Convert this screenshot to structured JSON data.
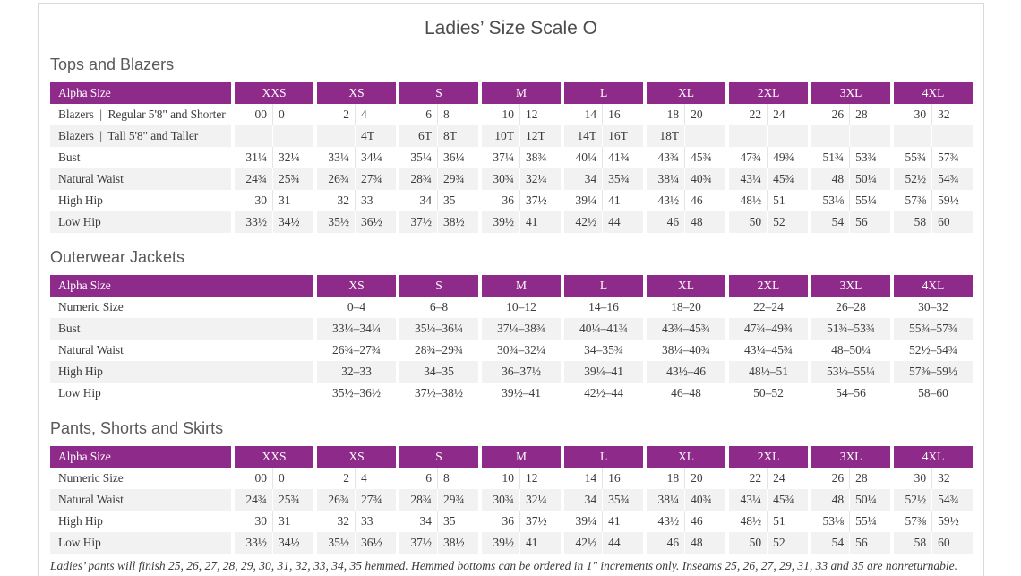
{
  "page": {
    "title": "Ladies’ Size Scale O",
    "footnote": "Ladies’ pants will finish 25, 26, 27, 28, 29, 30, 31, 32, 33, 34, 35 hemmed. Hemmed bottoms can be ordered in 1\" increments only. Inseams 25, 26, 27, 29, 31, 33 and 35 are nonreturnable."
  },
  "colors": {
    "header_purple": "#8e2a8a",
    "row_stripe": "#f2f2f2",
    "text_dark": "#3b3b3b",
    "heading_gray": "#595959",
    "frame_border": "#ddd8d8"
  },
  "tables": [
    {
      "section_title": "Tops and Blazers",
      "header_label": "Alpha Size",
      "split_columns": true,
      "size_groups": [
        "XXS",
        "XS",
        "S",
        "M",
        "L",
        "XL",
        "2XL",
        "3XL",
        "4XL"
      ],
      "rows": [
        {
          "label": "Blazers  |  Regular 5'8\" and Shorter",
          "values": [
            "00",
            "0",
            "2",
            "4",
            "6",
            "8",
            "10",
            "12",
            "14",
            "16",
            "18",
            "20",
            "22",
            "24",
            "26",
            "28",
            "30",
            "32"
          ]
        },
        {
          "label": "Blazers  |  Tall 5'8\" and Taller",
          "values": [
            "",
            "",
            "",
            "4T",
            "6T",
            "8T",
            "10T",
            "12T",
            "14T",
            "16T",
            "18T",
            "",
            "",
            "",
            "",
            "",
            "",
            ""
          ]
        },
        {
          "label": "Bust",
          "values": [
            "31¼",
            "32¼",
            "33¼",
            "34¼",
            "35¼",
            "36¼",
            "37¼",
            "38¾",
            "40¼",
            "41¾",
            "43¾",
            "45¾",
            "47¾",
            "49¾",
            "51¾",
            "53¾",
            "55¾",
            "57¾"
          ]
        },
        {
          "label": "Natural Waist",
          "values": [
            "24¾",
            "25¾",
            "26¾",
            "27¾",
            "28¾",
            "29¾",
            "30¾",
            "32¼",
            "34",
            "35¾",
            "38¼",
            "40¾",
            "43¼",
            "45¾",
            "48",
            "50¼",
            "52½",
            "54¾"
          ]
        },
        {
          "label": "High Hip",
          "values": [
            "30",
            "31",
            "32",
            "33",
            "34",
            "35",
            "36",
            "37½",
            "39¼",
            "41",
            "43½",
            "46",
            "48½",
            "51",
            "53⅛",
            "55¼",
            "57⅜",
            "59½"
          ]
        },
        {
          "label": "Low Hip",
          "values": [
            "33½",
            "34½",
            "35½",
            "36½",
            "37½",
            "38½",
            "39½",
            "41",
            "42½",
            "44",
            "46",
            "48",
            "50",
            "52",
            "54",
            "56",
            "58",
            "60"
          ]
        }
      ]
    },
    {
      "section_title": "Outerwear Jackets",
      "header_label": "Alpha Size",
      "split_columns": false,
      "size_groups": [
        "XS",
        "S",
        "M",
        "L",
        "XL",
        "2XL",
        "3XL",
        "4XL"
      ],
      "rows": [
        {
          "label": "Numeric Size",
          "values": [
            "0–4",
            "6–8",
            "10–12",
            "14–16",
            "18–20",
            "22–24",
            "26–28",
            "30–32"
          ]
        },
        {
          "label": "Bust",
          "values": [
            "33¼–34¼",
            "35¼–36¼",
            "37¼–38¾",
            "40¼–41¾",
            "43¾–45¾",
            "47¾–49¾",
            "51¾–53¾",
            "55¾–57¾"
          ]
        },
        {
          "label": "Natural Waist",
          "values": [
            "26¾–27¾",
            "28¾–29¾",
            "30¾–32¼",
            "34–35¾",
            "38¼–40¾",
            "43¼–45¾",
            "48–50¼",
            "52½–54¾"
          ]
        },
        {
          "label": "High Hip",
          "values": [
            "32–33",
            "34–35",
            "36–37½",
            "39¼–41",
            "43½–46",
            "48½–51",
            "53⅛–55¼",
            "57⅜–59½"
          ]
        },
        {
          "label": "Low Hip",
          "values": [
            "35½–36½",
            "37½–38½",
            "39½–41",
            "42½–44",
            "46–48",
            "50–52",
            "54–56",
            "58–60"
          ]
        }
      ]
    },
    {
      "section_title": "Pants, Shorts and Skirts",
      "header_label": "Alpha Size",
      "split_columns": true,
      "size_groups": [
        "XXS",
        "XS",
        "S",
        "M",
        "L",
        "XL",
        "2XL",
        "3XL",
        "4XL"
      ],
      "rows": [
        {
          "label": "Numeric Size",
          "values": [
            "00",
            "0",
            "2",
            "4",
            "6",
            "8",
            "10",
            "12",
            "14",
            "16",
            "18",
            "20",
            "22",
            "24",
            "26",
            "28",
            "30",
            "32"
          ]
        },
        {
          "label": "Natural Waist",
          "values": [
            "24¾",
            "25¾",
            "26¾",
            "27¾",
            "28¾",
            "29¾",
            "30¾",
            "32¼",
            "34",
            "35¾",
            "38¼",
            "40¾",
            "43¼",
            "45¾",
            "48",
            "50¼",
            "52½",
            "54¾"
          ]
        },
        {
          "label": "High Hip",
          "values": [
            "30",
            "31",
            "32",
            "33",
            "34",
            "35",
            "36",
            "37½",
            "39¼",
            "41",
            "43½",
            "46",
            "48½",
            "51",
            "53⅛",
            "55¼",
            "57⅜",
            "59½"
          ]
        },
        {
          "label": "Low Hip",
          "values": [
            "33½",
            "34½",
            "35½",
            "36½",
            "37½",
            "38½",
            "39½",
            "41",
            "42½",
            "44",
            "46",
            "48",
            "50",
            "52",
            "54",
            "56",
            "58",
            "60"
          ]
        }
      ]
    }
  ]
}
